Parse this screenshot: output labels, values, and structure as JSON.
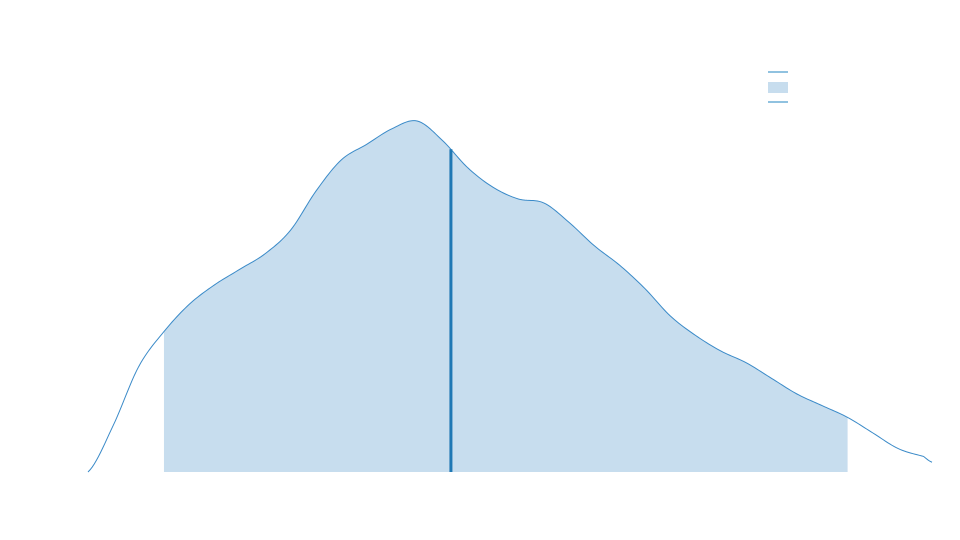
{
  "chart_data": {
    "type": "area",
    "series": [
      {
        "kind": "density-curve",
        "x": [
          0.0,
          0.3,
          0.6,
          0.9,
          1.2,
          1.5,
          1.8,
          2.1,
          2.4,
          2.7,
          3.0,
          3.3,
          3.6,
          3.9,
          4.2,
          4.5,
          4.8,
          5.1,
          5.4,
          5.7,
          6.0,
          6.3,
          6.6,
          6.9,
          7.2,
          7.5,
          7.8,
          8.1,
          8.4,
          8.7,
          9.0,
          9.3,
          9.6,
          9.9,
          10.0
        ],
        "y": [
          0.0,
          0.12,
          0.27,
          0.36,
          0.43,
          0.48,
          0.52,
          0.56,
          0.62,
          0.72,
          0.8,
          0.84,
          0.88,
          0.9,
          0.85,
          0.78,
          0.73,
          0.7,
          0.69,
          0.64,
          0.58,
          0.53,
          0.47,
          0.4,
          0.35,
          0.31,
          0.28,
          0.24,
          0.2,
          0.17,
          0.14,
          0.1,
          0.06,
          0.04,
          0.025
        ]
      }
    ],
    "shaded_interval": [
      0.9,
      9.0
    ],
    "median_x": 4.3,
    "xlim": [
      0,
      10
    ],
    "ylim": [
      0,
      1
    ],
    "grid": false,
    "legend_placement": "top-right",
    "legend_entries": [
      "",
      "",
      ""
    ],
    "colors": {
      "line": "#3a8ac8",
      "fill": "#c7ddee",
      "median": "#1f78b4",
      "legend": "#6baed6"
    }
  }
}
